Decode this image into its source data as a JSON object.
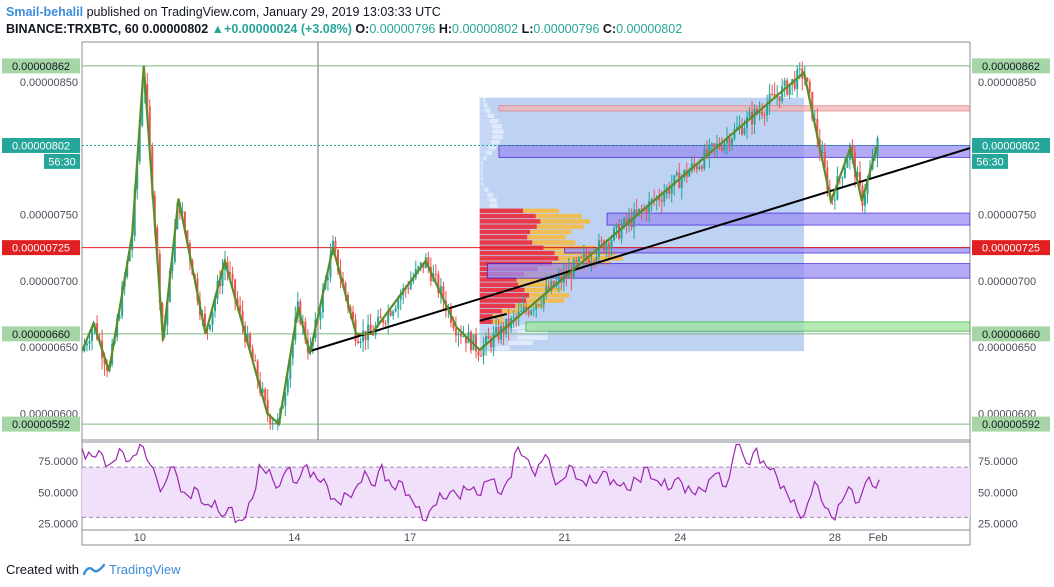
{
  "header": {
    "author": "Smail-behalil",
    "published": "published on TradingView.com, January 29, 2019 13:03:33 UTC",
    "symbol": "BINANCE:TRXBTC, 60",
    "last": "0.00000802",
    "change": "+0.00000024 (+3.08%)",
    "o_label": "O:",
    "o_value": "0.00000796",
    "h_label": "H:",
    "h_value": "0.00000802",
    "l_label": "L:",
    "l_value": "0.00000796",
    "c_label": "C:",
    "c_value": "0.00000802"
  },
  "footer": {
    "created_with": "Created with",
    "brand": "TradingView"
  },
  "colors": {
    "up": "#26a69a",
    "down": "#ef5350",
    "zigzag": "#5b8c2a",
    "rsi": "#9c27b0",
    "rsi_band": "#f0e0fa",
    "vp_area": "#a8c4f0",
    "price_tag": "#5fa35f",
    "red_level": "#e02020",
    "teal_tag": "#26a69a"
  },
  "chart_data": {
    "type": "line",
    "symbol": "BINANCE:TRXBTC",
    "interval": "60",
    "y_axis": {
      "range": [
        5.8e-06,
        8.8e-06
      ],
      "ticks": [
        "0.00000850",
        "0.00000750",
        "0.00000700",
        "0.00000650",
        "0.00000600"
      ],
      "tags": [
        {
          "label": "0.00000862",
          "value": 8.62e-06,
          "style": "green"
        },
        {
          "label": "0.00000802",
          "value": 8.02e-06,
          "style": "teal"
        },
        {
          "label": "56:30",
          "value": 7.9e-06,
          "style": "teal"
        },
        {
          "label": "0.00000725",
          "value": 7.25e-06,
          "style": "red"
        },
        {
          "label": "0.00000660",
          "value": 6.6e-06,
          "style": "green"
        },
        {
          "label": "0.00000592",
          "value": 5.92e-06,
          "style": "green"
        }
      ]
    },
    "x_axis": {
      "range": [
        8.5,
        31.5
      ],
      "ticks": [
        {
          "label": "10",
          "x": 10
        },
        {
          "label": "14",
          "x": 14
        },
        {
          "label": "17",
          "x": 17
        },
        {
          "label": "21",
          "x": 21
        },
        {
          "label": "24",
          "x": 24
        },
        {
          "label": "28",
          "x": 28
        },
        {
          "label": "Feb",
          "x": 32
        }
      ]
    },
    "zigzag": [
      [
        8.5,
        6.47e-06
      ],
      [
        8.8,
        6.68e-06
      ],
      [
        9.2,
        6.32e-06
      ],
      [
        9.8,
        7.35e-06
      ],
      [
        10.1,
        8.62e-06
      ],
      [
        10.6,
        6.55e-06
      ],
      [
        11.0,
        7.62e-06
      ],
      [
        11.7,
        6.6e-06
      ],
      [
        12.2,
        7.15e-06
      ],
      [
        13.3,
        6e-06
      ],
      [
        13.6,
        5.92e-06
      ],
      [
        14.1,
        6.8e-06
      ],
      [
        14.4,
        6.45e-06
      ],
      [
        15.0,
        7.25e-06
      ],
      [
        15.6,
        6.6e-06
      ],
      [
        16.0,
        6.6e-06
      ],
      [
        17.4,
        7.15e-06
      ],
      [
        18.2,
        6.65e-06
      ],
      [
        18.8,
        6.48e-06
      ],
      [
        27.2,
        8.57e-06
      ],
      [
        27.9,
        7.6e-06
      ],
      [
        28.4,
        8e-06
      ],
      [
        28.7,
        7.6e-06
      ],
      [
        29.1,
        8.02e-06
      ]
    ],
    "trendlines": [
      {
        "from": [
          14.4,
          6.47e-06
        ],
        "to": [
          31.5,
          8e-06
        ]
      },
      {
        "from": [
          18.8,
          6.7e-06
        ],
        "to": [
          19.5,
          6.75e-06
        ]
      }
    ],
    "horizontal_levels": [
      {
        "value": 8.62e-06,
        "color": "green"
      },
      {
        "value": 8.02e-06,
        "color": "teal",
        "dotted": true
      },
      {
        "value": 7.25e-06,
        "color": "red"
      },
      {
        "value": 6.6e-06,
        "color": "green"
      },
      {
        "value": 5.92e-06,
        "color": "green"
      }
    ],
    "zones": [
      {
        "from_x": 19.3,
        "to_x": 31.5,
        "low": 8.28e-06,
        "high": 8.32e-06,
        "color": "red"
      },
      {
        "from_x": 19.3,
        "to_x": 31.5,
        "low": 7.93e-06,
        "high": 8.02e-06,
        "color": "blue"
      },
      {
        "from_x": 22.1,
        "to_x": 31.5,
        "low": 7.42e-06,
        "high": 7.51e-06,
        "color": "blue"
      },
      {
        "from_x": 21.0,
        "to_x": 31.5,
        "low": 7.21e-06,
        "high": 7.25e-06,
        "color": "blue"
      },
      {
        "from_x": 19.0,
        "to_x": 31.5,
        "low": 7.02e-06,
        "high": 7.13e-06,
        "color": "blue"
      },
      {
        "from_x": 20.0,
        "to_x": 31.5,
        "low": 6.62e-06,
        "high": 6.69e-06,
        "color": "green"
      }
    ],
    "volume_profile": {
      "x_start": 18.8,
      "x_end": 27.2,
      "price_low": 6.47e-06,
      "price_high": 8.38e-06
    },
    "rsi": {
      "ticks": [
        "75.0000",
        "50.0000",
        "25.0000"
      ],
      "range": [
        20,
        90
      ],
      "bands": [
        30,
        70
      ],
      "values": [
        85,
        82,
        78,
        80,
        72,
        76,
        82,
        75,
        80,
        86,
        72,
        60,
        55,
        70,
        62,
        50,
        45,
        52,
        40,
        38,
        35,
        32,
        38,
        28,
        30,
        45,
        72,
        65,
        60,
        55,
        68,
        58,
        62,
        72,
        66,
        58,
        55,
        45,
        40,
        48,
        52,
        58,
        62,
        55,
        72,
        60,
        52,
        58,
        48,
        38,
        28,
        35,
        40,
        45,
        50,
        48,
        55,
        52,
        48,
        58,
        60,
        50,
        55,
        62,
        86,
        78,
        68,
        72,
        80,
        65,
        58,
        62,
        70,
        60,
        55,
        58,
        62,
        66,
        60,
        55,
        52,
        62,
        58,
        70,
        60,
        55,
        52,
        60,
        58,
        55,
        48,
        52,
        60,
        65,
        55,
        62,
        88,
        80,
        72,
        85,
        75,
        68,
        62,
        55,
        42,
        35,
        32,
        48,
        55,
        38,
        30,
        40,
        48,
        52,
        42,
        58,
        55,
        60
      ]
    }
  }
}
